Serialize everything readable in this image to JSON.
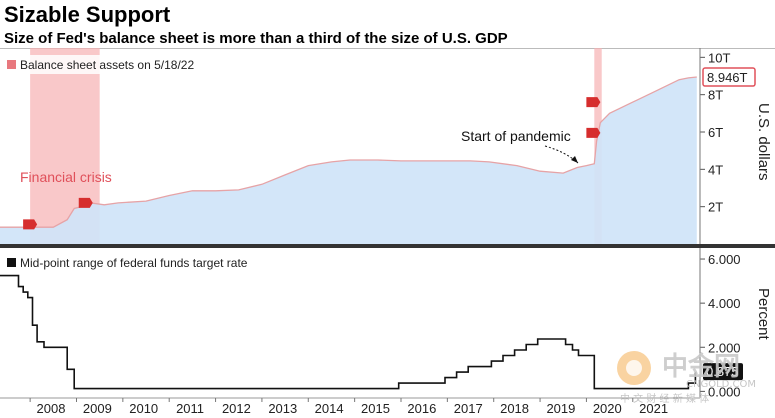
{
  "title": "Sizable Support",
  "subtitle": "Size of Fed's balance sheet is more than a third of the size of U.S. GDP",
  "colors": {
    "area_fill": "#cfe4f9",
    "area_line": "#e6a3a6",
    "shade": "#f6b0b2",
    "legend_red": "#e8787e",
    "line_black": "#111111",
    "callout": "#d62d2d",
    "divider": "#333333"
  },
  "chart_data": [
    {
      "type": "area",
      "title": "Balance sheet assets",
      "legend": "Balance sheet assets on 5/18/22",
      "ylabel": "U.S. dollars",
      "yticks": [
        "2T",
        "4T",
        "6T",
        "8T",
        "10T"
      ],
      "ytick_values": [
        2,
        4,
        6,
        8,
        10
      ],
      "ylim": [
        0,
        10.5
      ],
      "xlim": [
        2007.35,
        2022.45
      ],
      "last_value_label": "8.946T",
      "last_value": 8.946,
      "shaded_periods": [
        {
          "start": 2008.0,
          "end": 2009.5,
          "label": "Financial crisis"
        },
        {
          "start": 2020.17,
          "end": 2020.33,
          "label": ""
        }
      ],
      "annotation": {
        "text": "Start of pandemic",
        "x": 2020.15,
        "y": 4.2
      },
      "markers": [
        {
          "x": 2008.0,
          "y": 1.05
        },
        {
          "x": 2009.2,
          "y": 2.2
        },
        {
          "x": 2020.15,
          "y": 7.6
        },
        {
          "x": 2020.15,
          "y": 5.95
        }
      ],
      "x": [
        2007.35,
        2008.0,
        2008.5,
        2008.8,
        2008.95,
        2009.1,
        2009.3,
        2009.6,
        2009.9,
        2010.5,
        2011.0,
        2011.5,
        2012.0,
        2012.5,
        2013.0,
        2013.5,
        2014.0,
        2014.5,
        2014.9,
        2015.5,
        2016.0,
        2016.5,
        2017.0,
        2017.5,
        2017.9,
        2018.5,
        2019.0,
        2019.5,
        2019.8,
        2020.0,
        2020.17,
        2020.22,
        2020.3,
        2020.5,
        2021.0,
        2021.5,
        2022.0,
        2022.2,
        2022.38
      ],
      "values": [
        0.9,
        0.9,
        0.9,
        1.3,
        1.9,
        2.0,
        2.2,
        2.1,
        2.2,
        2.3,
        2.6,
        2.85,
        2.85,
        2.9,
        3.2,
        3.7,
        4.2,
        4.4,
        4.5,
        4.5,
        4.45,
        4.45,
        4.45,
        4.45,
        4.4,
        4.2,
        3.9,
        3.8,
        4.1,
        4.2,
        4.3,
        5.5,
        6.5,
        7.0,
        7.6,
        8.2,
        8.8,
        8.9,
        8.946
      ]
    },
    {
      "type": "line",
      "title": "Federal funds target rate",
      "legend": "Mid-point range of federal funds target rate",
      "ylabel": "Percent",
      "yticks": [
        "0.000",
        "2.000",
        "4.000",
        "6.000"
      ],
      "ytick_values": [
        0,
        2,
        4,
        6
      ],
      "ylim": [
        -0.3,
        6.5
      ],
      "last_value_label": "0.875",
      "last_value": 0.875,
      "xlim": [
        2007.35,
        2022.45
      ],
      "x": [
        2007.35,
        2007.67,
        2007.75,
        2007.85,
        2007.95,
        2008.05,
        2008.15,
        2008.3,
        2008.8,
        2008.95,
        2015.95,
        2016.95,
        2017.2,
        2017.45,
        2017.95,
        2018.2,
        2018.45,
        2018.7,
        2018.95,
        2019.55,
        2019.7,
        2019.83,
        2020.17,
        2020.2,
        2022.2,
        2022.35
      ],
      "values": [
        5.25,
        5.25,
        4.75,
        4.5,
        4.25,
        3.0,
        2.25,
        2.0,
        1.0,
        0.125,
        0.375,
        0.625,
        0.875,
        1.125,
        1.375,
        1.625,
        1.875,
        2.125,
        2.375,
        2.125,
        1.875,
        1.625,
        0.125,
        0.125,
        0.375,
        0.875
      ]
    }
  ],
  "xaxis": {
    "ticks": [
      "2008",
      "2009",
      "2010",
      "2011",
      "2012",
      "2013",
      "2014",
      "2015",
      "2016",
      "2017",
      "2018",
      "2019",
      "2020",
      "2021"
    ],
    "tick_values": [
      2008.45,
      2009.45,
      2010.45,
      2011.45,
      2012.45,
      2013.45,
      2014.45,
      2015.45,
      2016.45,
      2017.45,
      2018.45,
      2019.45,
      2020.45,
      2021.45
    ]
  },
  "watermark": {
    "main": "中金网",
    "sub": "CNGOLD.COM",
    "tagline": "中 文 财 经 新 媒 体"
  }
}
